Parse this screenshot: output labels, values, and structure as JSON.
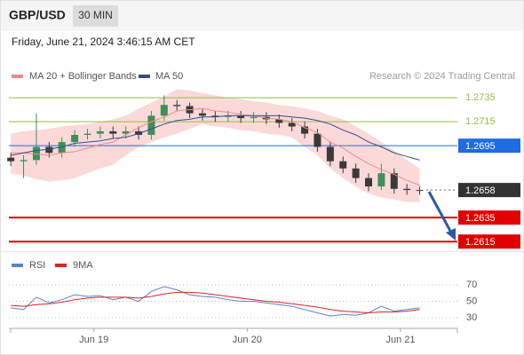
{
  "header": {
    "symbol": "GBP/USD",
    "interval": "30 MIN",
    "timestamp": "Friday, June 21, 2024 3:46:15 AM CET"
  },
  "chart_data": [
    {
      "type": "candlestick",
      "source": "Research © 2024 Trading Central",
      "x": [
        0,
        2,
        4,
        6,
        8,
        10,
        12,
        14,
        16,
        18,
        20,
        22,
        24,
        26,
        28,
        30,
        32,
        34,
        36,
        38,
        40,
        42,
        44,
        46,
        48,
        50,
        52,
        54,
        56,
        58,
        60,
        62,
        64
      ],
      "open": [
        1.2685,
        1.2682,
        1.2683,
        1.2694,
        1.2689,
        1.2698,
        1.2704,
        1.2705,
        1.2707,
        1.2705,
        1.2707,
        1.2704,
        1.272,
        1.2729,
        1.2728,
        1.2722,
        1.272,
        1.2719,
        1.272,
        1.2718,
        1.2719,
        1.2717,
        1.2714,
        1.2711,
        1.2705,
        1.2694,
        1.2682,
        1.2676,
        1.2668,
        1.2661,
        1.2672,
        1.2659,
        1.2658
      ],
      "high": [
        1.2689,
        1.2687,
        1.2722,
        1.2698,
        1.2702,
        1.2708,
        1.2709,
        1.2711,
        1.2711,
        1.2711,
        1.2711,
        1.2724,
        1.2737,
        1.2733,
        1.2731,
        1.2726,
        1.2724,
        1.2724,
        1.2724,
        1.2723,
        1.2723,
        1.2721,
        1.2718,
        1.2715,
        1.2709,
        1.2698,
        1.2686,
        1.268,
        1.2672,
        1.268,
        1.2676,
        1.2663,
        1.2661
      ],
      "low": [
        1.2678,
        1.2668,
        1.2679,
        1.2685,
        1.2685,
        1.2694,
        1.27,
        1.2701,
        1.2701,
        1.2701,
        1.27,
        1.27,
        1.2716,
        1.2724,
        1.2718,
        1.2716,
        1.2715,
        1.2715,
        1.2714,
        1.2714,
        1.2713,
        1.271,
        1.2707,
        1.2701,
        1.269,
        1.2678,
        1.2672,
        1.2664,
        1.2657,
        1.2658,
        1.2655,
        1.2654,
        1.2654
      ],
      "close": [
        1.2682,
        1.2683,
        1.2694,
        1.2689,
        1.2698,
        1.2704,
        1.2705,
        1.2707,
        1.2705,
        1.2707,
        1.2704,
        1.272,
        1.2729,
        1.2728,
        1.2722,
        1.272,
        1.2719,
        1.272,
        1.2718,
        1.2719,
        1.2717,
        1.2714,
        1.2711,
        1.2705,
        1.2694,
        1.2682,
        1.2676,
        1.2668,
        1.2661,
        1.2672,
        1.2659,
        1.2658,
        1.2658
      ],
      "up_color": "#3f8f5a",
      "down_color": "#3a3a3a",
      "series": [
        {
          "name": "MA 20 + Bollinger Bands",
          "color": "#f08a8a",
          "band_color": "#fbd9d9",
          "values": [
            1.2689,
            1.2689,
            1.2688,
            1.2687,
            1.2689,
            1.269,
            1.2693,
            1.2696,
            1.2698,
            1.2704,
            1.271,
            1.2715,
            1.2719,
            1.2724,
            1.2725,
            1.2726,
            1.2724,
            1.2723,
            1.2721,
            1.272,
            1.2718,
            1.2717,
            1.2715,
            1.271,
            1.2706,
            1.2698,
            1.2693,
            1.2686,
            1.268,
            1.2675,
            1.2671,
            1.2666,
            1.2662
          ],
          "upper": [
            1.2705,
            1.2707,
            1.2708,
            1.2709,
            1.2711,
            1.2712,
            1.2713,
            1.2715,
            1.2717,
            1.272,
            1.2726,
            1.2731,
            1.2736,
            1.2742,
            1.2741,
            1.2739,
            1.2737,
            1.2735,
            1.2734,
            1.2732,
            1.2731,
            1.2729,
            1.2728,
            1.2726,
            1.2724,
            1.272,
            1.2717,
            1.2711,
            1.2705,
            1.2698,
            1.2691,
            1.2683,
            1.2676
          ],
          "lower": [
            1.2672,
            1.267,
            1.2667,
            1.2665,
            1.2666,
            1.2668,
            1.2672,
            1.2676,
            1.2679,
            1.2687,
            1.2694,
            1.2698,
            1.2702,
            1.2705,
            1.2709,
            1.2713,
            1.2711,
            1.271,
            1.2708,
            1.2707,
            1.2705,
            1.2704,
            1.2702,
            1.2694,
            1.2687,
            1.2676,
            1.2668,
            1.2661,
            1.2655,
            1.2652,
            1.265,
            1.2648,
            1.2648
          ]
        },
        {
          "name": "MA 50",
          "color": "#2f4f8f",
          "values": [
            1.2687,
            1.2689,
            1.2691,
            1.2692,
            1.2694,
            1.2697,
            1.2698,
            1.2699,
            1.2701,
            1.2702,
            1.2705,
            1.2709,
            1.2713,
            1.2716,
            1.2717,
            1.2719,
            1.2719,
            1.272,
            1.272,
            1.272,
            1.272,
            1.272,
            1.2719,
            1.2718,
            1.2716,
            1.2713,
            1.2708,
            1.2704,
            1.2698,
            1.2694,
            1.2689,
            1.2686,
            1.2683
          ]
        }
      ],
      "levels": [
        {
          "value": 1.2735,
          "color": "#8fbf3f",
          "boxed": false,
          "line_width": 1,
          "dash": false
        },
        {
          "value": 1.2715,
          "color": "#8fbf3f",
          "boxed": false,
          "line_width": 1,
          "dash": false
        },
        {
          "value": 1.2695,
          "color": "#1f6be0",
          "boxed": true,
          "line_width": 1,
          "dash": false
        },
        {
          "value": 1.2658,
          "color": "#333333",
          "boxed": true,
          "line_width": 1,
          "dash": true
        },
        {
          "value": 1.2635,
          "color": "#e00000",
          "boxed": true,
          "line_width": 2,
          "dash": false
        },
        {
          "value": 1.2615,
          "color": "#e00000",
          "boxed": true,
          "line_width": 2,
          "dash": false
        }
      ],
      "xlim": [
        -0.3,
        69.9
      ],
      "ylim": [
        1.2607,
        1.2761
      ]
    },
    {
      "type": "line",
      "x": [
        0,
        2,
        4,
        6,
        8,
        10,
        12,
        14,
        16,
        18,
        20,
        22,
        24,
        26,
        28,
        30,
        32,
        34,
        36,
        38,
        40,
        42,
        44,
        46,
        48,
        50,
        52,
        54,
        56,
        58,
        60,
        62,
        64
      ],
      "series": [
        {
          "name": "RSI",
          "color": "#5b7fd6",
          "values": [
            42,
            40,
            55,
            48,
            52,
            58,
            56,
            57,
            52,
            55,
            50,
            62,
            68,
            64,
            58,
            56,
            55,
            52,
            50,
            50,
            48,
            46,
            44,
            40,
            36,
            32,
            34,
            33,
            36,
            44,
            38,
            40,
            42
          ]
        },
        {
          "name": "9MA",
          "color": "#e02020",
          "values": [
            45,
            44,
            46,
            47,
            49,
            52,
            54,
            55,
            55,
            55,
            54,
            56,
            59,
            61,
            61,
            60,
            58,
            56,
            54,
            52,
            50,
            49,
            47,
            45,
            43,
            40,
            38,
            37,
            36,
            37,
            37,
            38,
            40
          ]
        }
      ],
      "xlim": [
        -0.3,
        69.9
      ],
      "ylim": [
        17,
        82
      ],
      "yticks": [
        30,
        50,
        70
      ],
      "grid": true,
      "xticks": [
        {
          "value": 13,
          "label": "Jun 19"
        },
        {
          "value": 37,
          "label": "Jun 20"
        },
        {
          "value": 61,
          "label": "Jun 21"
        }
      ]
    }
  ]
}
